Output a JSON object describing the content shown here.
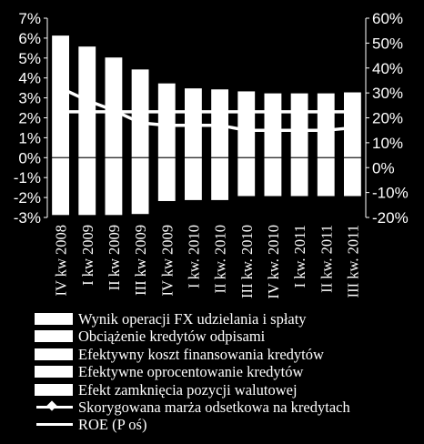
{
  "chart_data": {
    "type": "bar",
    "categories": [
      "IV kw 2008",
      "I kw 2009",
      "II kw 2009",
      "III kw 2009",
      "IV kw 2009",
      "I kw. 2010",
      "II kw. 2010",
      "III kw. 2010",
      "IV kw. 2010",
      "I kw. 2011",
      "II kw. 2011",
      "III kw. 2011"
    ],
    "y_left": {
      "min": -3,
      "max": 7,
      "step": 1,
      "unit": "%"
    },
    "y_right": {
      "min": -20,
      "max": 60,
      "step": 10,
      "unit": "%"
    },
    "series": [
      {
        "name": "Wynik operacji FX udzielania i spłaty",
        "axis": "left",
        "kind": "bar",
        "values": [
          6.15,
          5.6,
          5.05,
          4.45,
          3.75,
          3.5,
          3.45,
          3.35,
          3.25,
          3.25,
          3.25,
          3.3
        ]
      },
      {
        "name": "Obciążenie kredytów odpisami",
        "axis": "left",
        "kind": "bar",
        "values": [
          -2.9,
          -2.9,
          -2.9,
          -2.85,
          -2.2,
          -2.15,
          -2.15,
          -1.95,
          -1.95,
          -1.95,
          -1.95,
          -1.95
        ]
      },
      {
        "name": "Efektywny koszt finansowania kredytów",
        "axis": "left",
        "kind": "bar",
        "values": [
          0,
          0,
          0,
          0,
          0,
          0,
          0,
          0,
          0,
          0,
          0,
          0
        ]
      },
      {
        "name": "Efektywne oprocentowanie kredytów",
        "axis": "left",
        "kind": "bar",
        "values": [
          0,
          0,
          0,
          0,
          0,
          0,
          0,
          0,
          0,
          0,
          0,
          0
        ]
      },
      {
        "name": "Efekt zamknięcia pozycji walutowej",
        "axis": "left",
        "kind": "bar",
        "values": [
          0,
          0,
          0,
          0,
          0,
          0,
          0,
          0,
          0,
          0,
          0,
          0
        ]
      },
      {
        "name": "Skorygowana marża odsetkowa na kredytach",
        "axis": "left",
        "kind": "line-marker",
        "values": [
          2.3,
          2.3,
          2.3,
          2.3,
          2.3,
          2.3,
          2.3,
          2.3,
          2.3,
          2.3,
          2.3,
          2.3
        ]
      },
      {
        "name": "ROE (P oś)",
        "axis": "right",
        "kind": "line",
        "values": [
          32,
          27,
          23,
          18,
          17,
          17,
          17,
          15,
          15,
          15,
          15,
          16
        ]
      }
    ],
    "grid": false,
    "legend": "bottom",
    "colors": {
      "background": "#000000",
      "foreground": "#ffffff"
    }
  }
}
